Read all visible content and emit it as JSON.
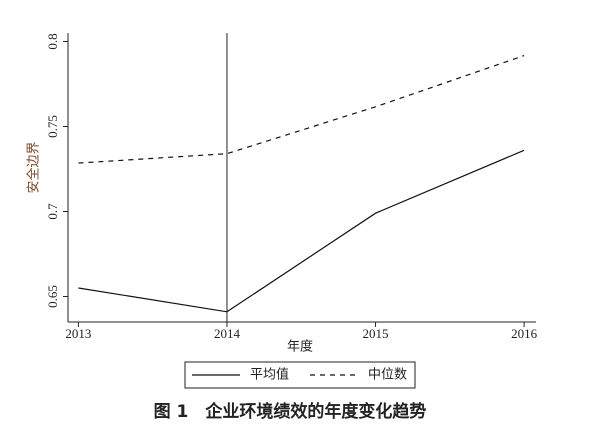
{
  "chart_data": {
    "type": "line",
    "title": "图 1　企业环境绩效的年度变化趋势",
    "x_label": "年度",
    "y_label": "安全边界",
    "x": [
      2013,
      2014,
      2015,
      2016
    ],
    "series": [
      {
        "name": "平均值",
        "color": "#111111",
        "dash": "solid",
        "values": [
          0.655,
          0.641,
          0.699,
          0.736
        ]
      },
      {
        "name": "中位数",
        "color": "#111111",
        "dash": "dashed",
        "values": [
          0.7285,
          0.734,
          0.7616,
          0.7917
        ]
      }
    ],
    "xlim": [
      2012.93,
      2016.08
    ],
    "xticks": [
      2013,
      2014,
      2015,
      2016
    ],
    "ylim": [
      0.635,
      0.805
    ],
    "yticks": [
      0.65,
      0.7,
      0.75,
      0.8
    ],
    "xline": 2014,
    "y_label_color": "#7a4a2a",
    "legend": "bottom"
  }
}
